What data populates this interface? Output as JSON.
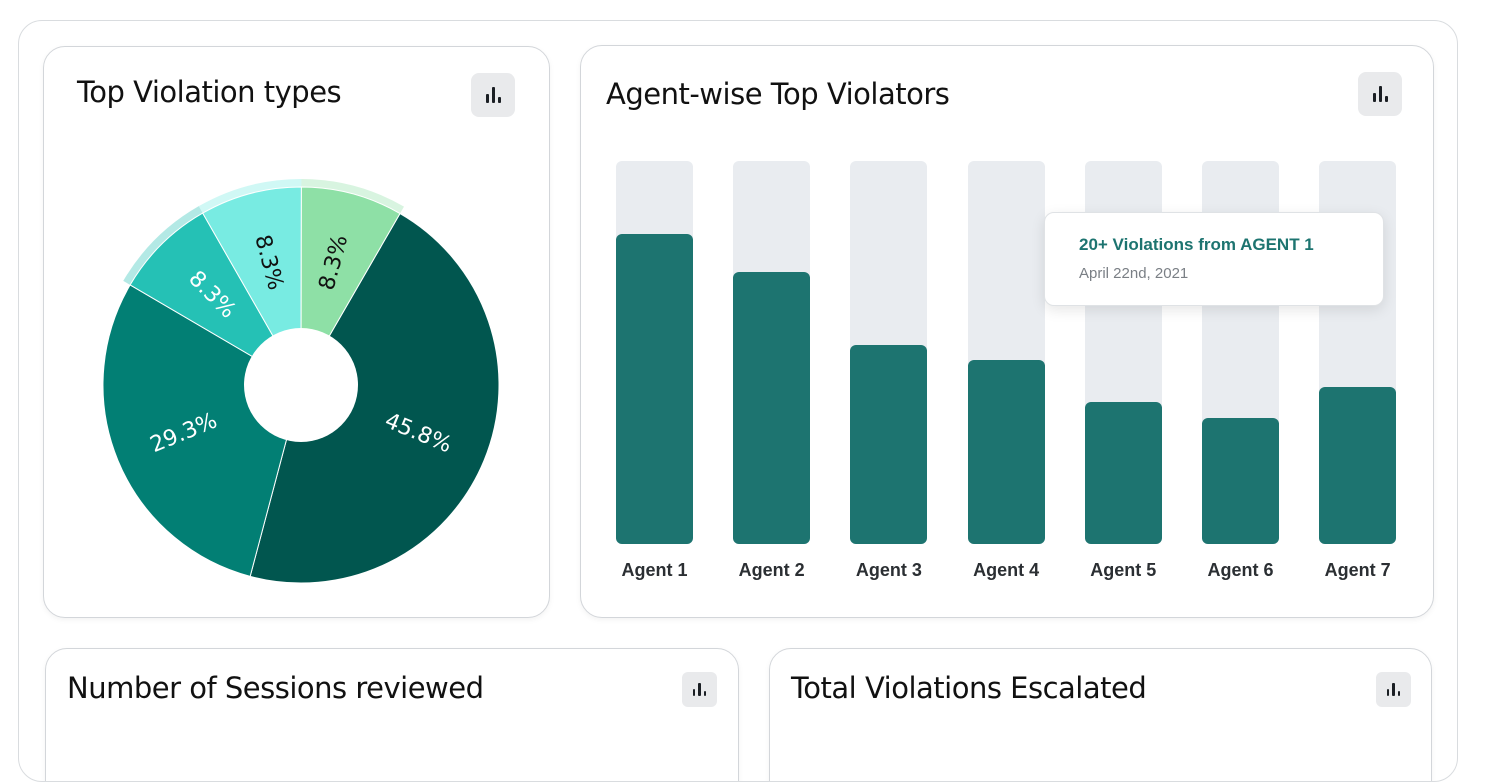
{
  "cards": {
    "violation_types": {
      "title": "Top Violation types"
    },
    "agent_violators": {
      "title": "Agent-wise Top Violators"
    },
    "sessions_reviewed": {
      "title": "Number of Sessions reviewed"
    },
    "violations_escalated": {
      "title": "Total Violations Escalated"
    }
  },
  "icons": {
    "chart_toggle": "bar-chart-icon"
  },
  "tooltip": {
    "title": "20+ Violations from AGENT 1",
    "date": "April 22nd, 2021"
  },
  "colors": {
    "bar": "#1d7470",
    "bar_track": "#e9ecf0",
    "tooltip_title": "#1d7470",
    "slice_dark": "#01564f",
    "slice_mid": "#027f74",
    "slice_teal": "#25c1b5",
    "slice_aqua": "#78ebe2",
    "slice_green": "#8ee0a6"
  },
  "chart_data": [
    {
      "type": "pie",
      "title": "Top Violation types",
      "slices": [
        {
          "label": "45.8%",
          "value": 45.8,
          "color": "#01564f",
          "text_color": "#ffffff"
        },
        {
          "label": "29.3%",
          "value": 29.3,
          "color": "#027f74",
          "text_color": "#ffffff"
        },
        {
          "label": "8.3%",
          "value": 8.3,
          "color": "#25c1b5",
          "text_color": "#ffffff"
        },
        {
          "label": "8.3%",
          "value": 8.3,
          "color": "#78ebe2",
          "text_color": "#111111"
        },
        {
          "label": "8.3%",
          "value": 8.3,
          "color": "#8ee0a6",
          "text_color": "#111111"
        }
      ]
    },
    {
      "type": "bar",
      "title": "Agent-wise Top Violators",
      "categories": [
        "Agent 1",
        "Agent 2",
        "Agent 3",
        "Agent 4",
        "Agent 5",
        "Agent 6",
        "Agent 7"
      ],
      "values": [
        81,
        71,
        52,
        48,
        37,
        33,
        41
      ],
      "ylim": [
        0,
        100
      ]
    }
  ]
}
